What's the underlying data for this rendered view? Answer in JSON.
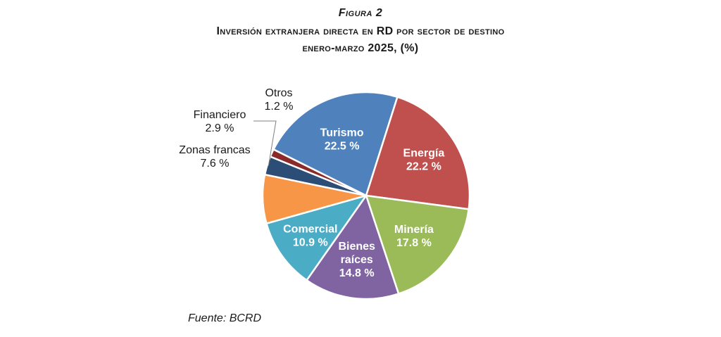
{
  "header": {
    "figure_label": "Figura 2",
    "title_line1": "Inversión extranjera directa en RD por sector de destino",
    "title_line2": "enero-marzo 2025, (%)"
  },
  "source": "Fuente: BCRD",
  "chart_data": {
    "type": "pie",
    "title": "Inversión extranjera directa en RD por sector de destino enero-marzo 2025, (%)",
    "categories": [
      "Turismo",
      "Energía",
      "Minería",
      "Bienes raíces",
      "Comercial",
      "Zonas francas",
      "Financiero",
      "Otros"
    ],
    "values": [
      22.5,
      22.2,
      17.8,
      14.8,
      10.9,
      7.6,
      2.9,
      1.2
    ],
    "value_labels": [
      "22.5 %",
      "22.2 %",
      "17.8 %",
      "14.8 %",
      "10.9 %",
      "7.6 %",
      "2.9 %",
      "1.2 %"
    ],
    "label_lines": [
      [
        "Turismo",
        "22.5 %"
      ],
      [
        "Energía",
        "22.2 %"
      ],
      [
        "Minería",
        "17.8 %"
      ],
      [
        "Bienes",
        "raíces",
        "14.8 %"
      ],
      [
        "Comercial",
        "10.9 %"
      ],
      [
        "Zonas francas",
        "7.6 %"
      ],
      [
        "Financiero",
        "2.9 %"
      ],
      [
        "Otros",
        "1.2 %"
      ]
    ],
    "colors": [
      "#4f81bd",
      "#c0504d",
      "#9bbb59",
      "#8064a2",
      "#4bacc6",
      "#f79646",
      "#2c4d75",
      "#8b2a2a"
    ],
    "label_placement": [
      "inside",
      "inside",
      "inside",
      "inside",
      "inside",
      "outside",
      "outside",
      "outside"
    ],
    "legend": "none"
  }
}
